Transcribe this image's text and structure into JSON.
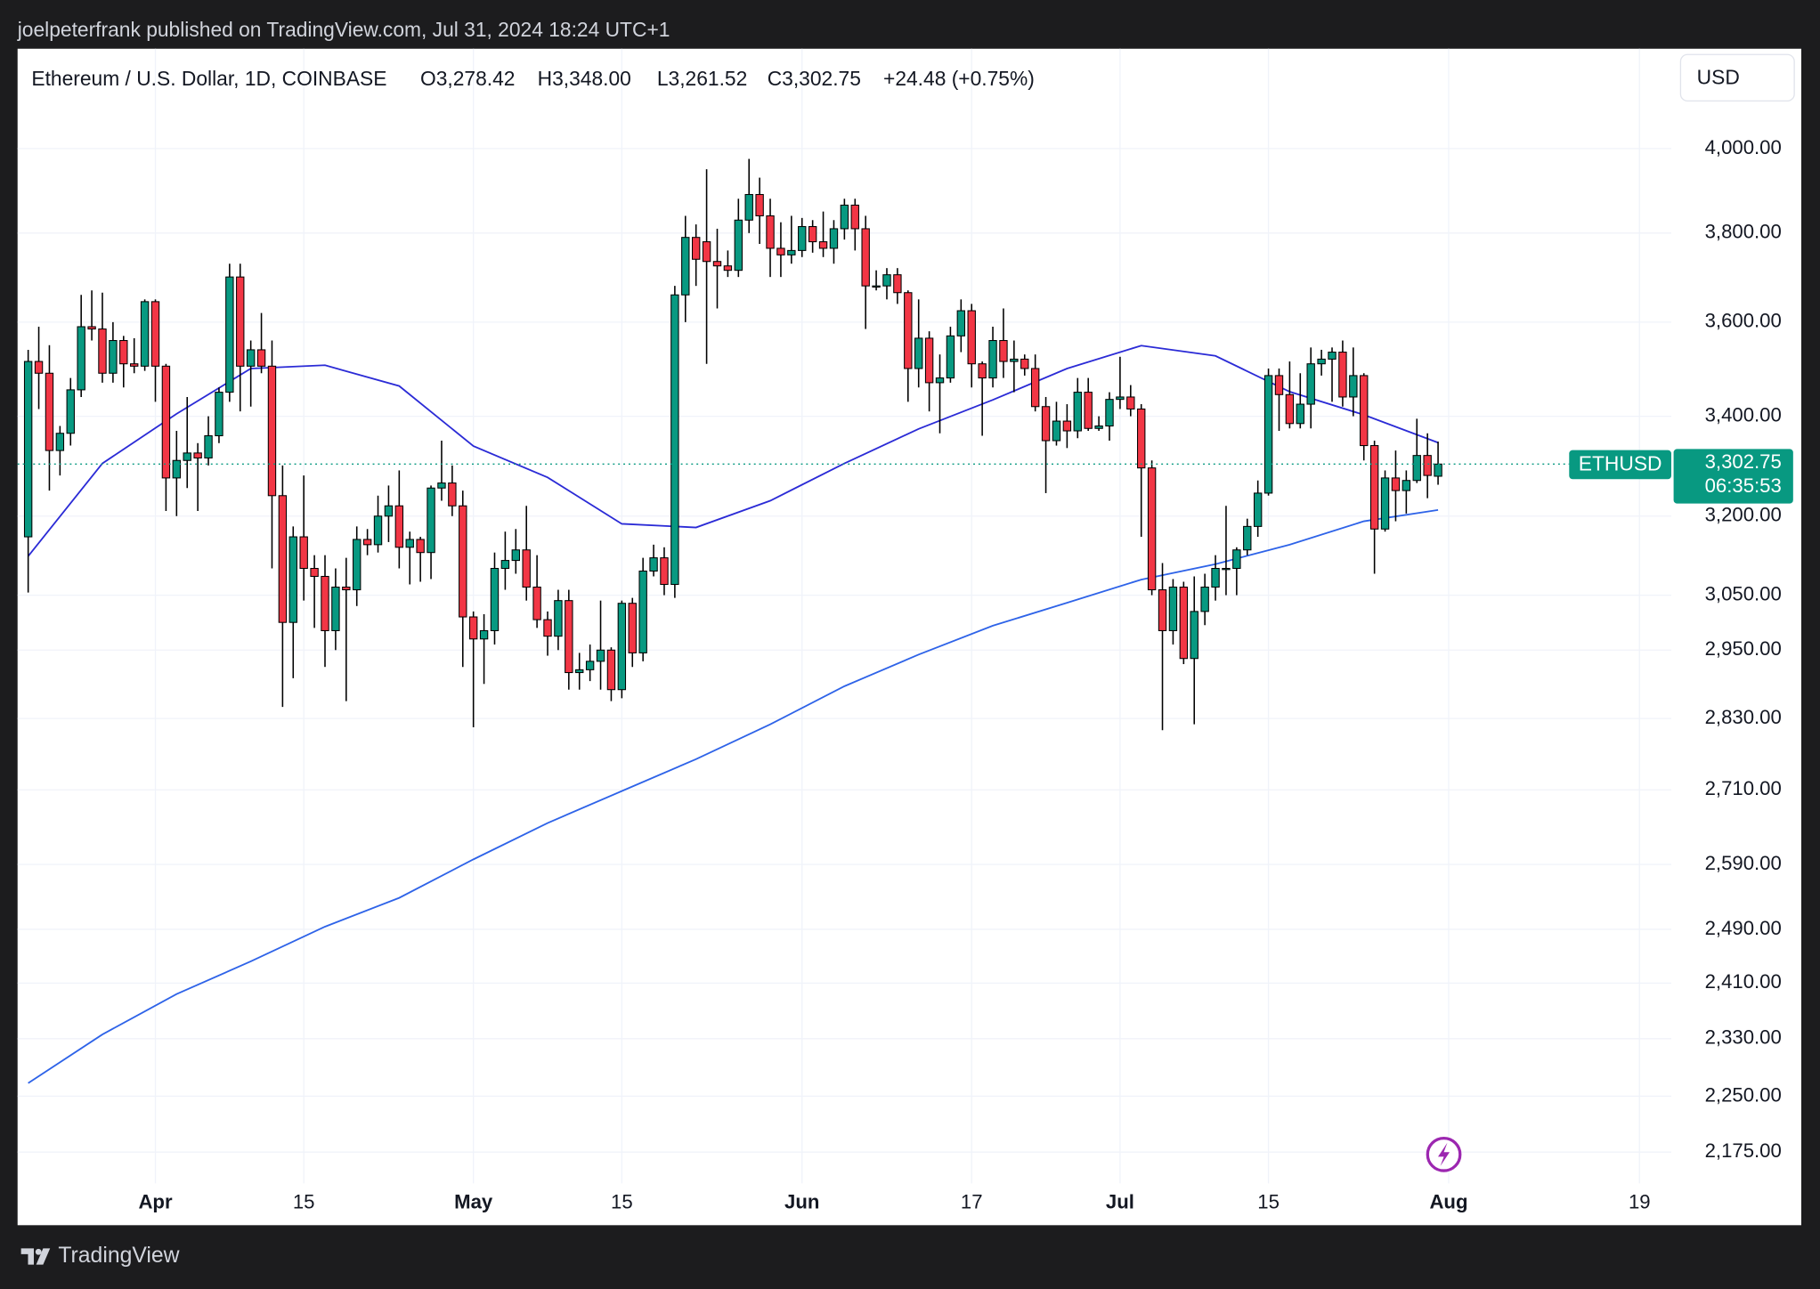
{
  "header": {
    "published": "joelpeterfrank published on TradingView.com, Jul 31, 2024 18:24 UTC+1",
    "footer": "TradingView"
  },
  "chart_data": {
    "type": "candlestick",
    "title": "Ethereum / U.S. Dollar, 1D, COINBASE",
    "ohlc_labels": [
      "O3,278.42",
      "H3,348.00",
      "L3,261.52",
      "C3,302.75"
    ],
    "change": "+24.48 (+0.75%)",
    "currency": "USD",
    "symbol": "ETHUSD",
    "last_price_label": "3,302.75",
    "countdown": "06:35:53",
    "up_color": "#089981",
    "down_color": "#f23645",
    "wick_color": "#000000",
    "log_scale": true,
    "grid": true,
    "x": [
      "2024-03-20",
      "2024-03-21",
      "2024-03-22",
      "2024-03-23",
      "2024-03-24",
      "2024-03-25",
      "2024-03-26",
      "2024-03-27",
      "2024-03-28",
      "2024-03-29",
      "2024-03-30",
      "2024-03-31",
      "2024-04-01",
      "2024-04-02",
      "2024-04-03",
      "2024-04-04",
      "2024-04-05",
      "2024-04-06",
      "2024-04-07",
      "2024-04-08",
      "2024-04-09",
      "2024-04-10",
      "2024-04-11",
      "2024-04-12",
      "2024-04-13",
      "2024-04-14",
      "2024-04-15",
      "2024-04-16",
      "2024-04-17",
      "2024-04-18",
      "2024-04-19",
      "2024-04-20",
      "2024-04-21",
      "2024-04-22",
      "2024-04-23",
      "2024-04-24",
      "2024-04-25",
      "2024-04-26",
      "2024-04-27",
      "2024-04-28",
      "2024-04-29",
      "2024-04-30",
      "2024-05-01",
      "2024-05-02",
      "2024-05-03",
      "2024-05-04",
      "2024-05-05",
      "2024-05-06",
      "2024-05-07",
      "2024-05-08",
      "2024-05-09",
      "2024-05-10",
      "2024-05-11",
      "2024-05-12",
      "2024-05-13",
      "2024-05-14",
      "2024-05-15",
      "2024-05-16",
      "2024-05-17",
      "2024-05-18",
      "2024-05-19",
      "2024-05-20",
      "2024-05-21",
      "2024-05-22",
      "2024-05-23",
      "2024-05-24",
      "2024-05-25",
      "2024-05-26",
      "2024-05-27",
      "2024-05-28",
      "2024-05-29",
      "2024-05-30",
      "2024-05-31",
      "2024-06-01",
      "2024-06-02",
      "2024-06-03",
      "2024-06-04",
      "2024-06-05",
      "2024-06-06",
      "2024-06-07",
      "2024-06-08",
      "2024-06-09",
      "2024-06-10",
      "2024-06-11",
      "2024-06-12",
      "2024-06-13",
      "2024-06-14",
      "2024-06-15",
      "2024-06-16",
      "2024-06-17",
      "2024-06-18",
      "2024-06-19",
      "2024-06-20",
      "2024-06-21",
      "2024-06-22",
      "2024-06-23",
      "2024-06-24",
      "2024-06-25",
      "2024-06-26",
      "2024-06-27",
      "2024-06-28",
      "2024-06-29",
      "2024-06-30",
      "2024-07-01",
      "2024-07-02",
      "2024-07-03",
      "2024-07-04",
      "2024-07-05",
      "2024-07-06",
      "2024-07-07",
      "2024-07-08",
      "2024-07-09",
      "2024-07-10",
      "2024-07-11",
      "2024-07-12",
      "2024-07-13",
      "2024-07-14",
      "2024-07-15",
      "2024-07-16",
      "2024-07-17",
      "2024-07-18",
      "2024-07-19",
      "2024-07-20",
      "2024-07-21",
      "2024-07-22",
      "2024-07-23",
      "2024-07-24",
      "2024-07-25",
      "2024-07-26",
      "2024-07-27",
      "2024-07-28",
      "2024-07-29",
      "2024-07-30",
      "2024-07-31"
    ],
    "open": [
      3160,
      3515,
      3490,
      3330,
      3365,
      3455,
      3590,
      3585,
      3490,
      3560,
      3510,
      3505,
      3645,
      3505,
      3275,
      3310,
      3325,
      3315,
      3360,
      3450,
      3700,
      3505,
      3540,
      3505,
      3240,
      3000,
      3160,
      3100,
      3085,
      2985,
      3065,
      3060,
      3155,
      3145,
      3200,
      3220,
      3140,
      3155,
      3130,
      3255,
      3265,
      3220,
      3010,
      2970,
      2985,
      3100,
      3115,
      3135,
      3065,
      3005,
      2975,
      3040,
      2910,
      2915,
      2930,
      2950,
      2880,
      3035,
      2945,
      3095,
      3120,
      3070,
      3660,
      3790,
      3780,
      3735,
      3725,
      3715,
      3830,
      3890,
      3840,
      3765,
      3750,
      3760,
      3815,
      3780,
      3765,
      3810,
      3865,
      3810,
      3680,
      3680,
      3705,
      3665,
      3500,
      3565,
      3470,
      3480,
      3570,
      3625,
      3510,
      3480,
      3560,
      3515,
      3520,
      3500,
      3420,
      3350,
      3390,
      3370,
      3450,
      3375,
      3380,
      3435,
      3440,
      3415,
      3295,
      3060,
      2985,
      3065,
      2935,
      3020,
      3065,
      3100,
      3100,
      3135,
      3180,
      3245,
      3485,
      3445,
      3385,
      3425,
      3510,
      3520,
      3535,
      3440,
      3485,
      3340,
      3175,
      3275,
      3250,
      3270,
      3320,
      3278.42
    ],
    "high": [
      3540,
      3590,
      3550,
      3380,
      3480,
      3660,
      3670,
      3665,
      3600,
      3570,
      3565,
      3650,
      3650,
      3510,
      3370,
      3440,
      3345,
      3400,
      3460,
      3730,
      3730,
      3560,
      3620,
      3560,
      3300,
      3180,
      3280,
      3125,
      3125,
      3100,
      3120,
      3180,
      3175,
      3240,
      3260,
      3290,
      3170,
      3160,
      3260,
      3350,
      3300,
      3250,
      3020,
      3015,
      3130,
      3170,
      3175,
      3220,
      3125,
      3020,
      3060,
      3060,
      2945,
      2960,
      3040,
      2955,
      3040,
      3045,
      3120,
      3145,
      3140,
      3680,
      3840,
      3820,
      3950,
      3810,
      3760,
      3880,
      3975,
      3930,
      3880,
      3825,
      3840,
      3835,
      3830,
      3850,
      3830,
      3880,
      3880,
      3840,
      3715,
      3720,
      3720,
      3670,
      3650,
      3580,
      3530,
      3590,
      3650,
      3640,
      3515,
      3590,
      3630,
      3560,
      3530,
      3530,
      3440,
      3430,
      3425,
      3480,
      3480,
      3400,
      3450,
      3525,
      3465,
      3425,
      3310,
      3110,
      3080,
      3075,
      3085,
      3090,
      3125,
      3220,
      3140,
      3195,
      3270,
      3500,
      3500,
      3515,
      3490,
      3545,
      3540,
      3545,
      3560,
      3545,
      3490,
      3350,
      3290,
      3330,
      3290,
      3395,
      3365,
      3348
    ],
    "low": [
      3055,
      3415,
      3250,
      3280,
      3340,
      3440,
      3560,
      3470,
      3470,
      3460,
      3490,
      3495,
      3430,
      3210,
      3200,
      3255,
      3210,
      3300,
      3345,
      3430,
      3410,
      3420,
      3490,
      3100,
      2850,
      2900,
      3040,
      2990,
      2920,
      2950,
      2860,
      3030,
      3125,
      3130,
      3150,
      3100,
      3070,
      3075,
      3080,
      3230,
      3200,
      2920,
      2815,
      2890,
      2960,
      3060,
      3090,
      3040,
      2990,
      2940,
      2950,
      2880,
      2880,
      2895,
      2880,
      2860,
      2865,
      2920,
      2930,
      3085,
      3050,
      3045,
      3600,
      3680,
      3510,
      3630,
      3700,
      3700,
      3800,
      3775,
      3700,
      3700,
      3730,
      3745,
      3755,
      3745,
      3730,
      3785,
      3760,
      3585,
      3670,
      3650,
      3640,
      3430,
      3460,
      3410,
      3365,
      3470,
      3535,
      3460,
      3360,
      3460,
      3480,
      3450,
      3485,
      3410,
      3245,
      3340,
      3335,
      3355,
      3370,
      3370,
      3350,
      3415,
      3400,
      3160,
      3050,
      2810,
      2960,
      2925,
      2820,
      2995,
      3040,
      3050,
      3050,
      3125,
      3160,
      3240,
      3370,
      3375,
      3375,
      3375,
      3485,
      3430,
      3420,
      3400,
      3310,
      3090,
      3170,
      3190,
      3205,
      3265,
      3235,
      3261.52
    ],
    "close": [
      3515,
      3490,
      3330,
      3365,
      3455,
      3590,
      3585,
      3490,
      3560,
      3510,
      3505,
      3645,
      3505,
      3275,
      3310,
      3325,
      3315,
      3360,
      3450,
      3700,
      3505,
      3540,
      3505,
      3240,
      3000,
      3160,
      3100,
      3085,
      2985,
      3065,
      3060,
      3155,
      3145,
      3200,
      3220,
      3140,
      3155,
      3130,
      3255,
      3265,
      3220,
      3010,
      2970,
      2985,
      3100,
      3115,
      3135,
      3065,
      3005,
      2975,
      3040,
      2910,
      2915,
      2930,
      2950,
      2880,
      3035,
      2945,
      3095,
      3120,
      3070,
      3660,
      3790,
      3740,
      3735,
      3725,
      3715,
      3830,
      3890,
      3840,
      3765,
      3750,
      3760,
      3815,
      3780,
      3765,
      3810,
      3865,
      3810,
      3680,
      3680,
      3705,
      3665,
      3500,
      3565,
      3470,
      3480,
      3570,
      3625,
      3510,
      3480,
      3560,
      3515,
      3520,
      3500,
      3420,
      3350,
      3390,
      3370,
      3450,
      3375,
      3380,
      3435,
      3440,
      3415,
      3295,
      3060,
      2985,
      3065,
      2935,
      3020,
      3065,
      3100,
      3100,
      3135,
      3180,
      3245,
      3485,
      3445,
      3385,
      3425,
      3510,
      3520,
      3535,
      3440,
      3485,
      3340,
      3175,
      3275,
      3250,
      3270,
      3320,
      3280,
      3302.75
    ],
    "lines": [
      {
        "color": "#2b2bd6",
        "x": [
          "2024-03-20",
          "2024-03-27",
          "2024-04-03",
          "2024-04-10",
          "2024-04-17",
          "2024-04-24",
          "2024-05-01",
          "2024-05-08",
          "2024-05-15",
          "2024-05-22",
          "2024-05-29",
          "2024-06-05",
          "2024-06-12",
          "2024-06-19",
          "2024-06-26",
          "2024-07-03",
          "2024-07-10",
          "2024-07-17",
          "2024-07-24",
          "2024-07-31"
        ],
        "values": [
          3123,
          3304,
          3405,
          3500,
          3507,
          3463,
          3339,
          3276,
          3185,
          3178,
          3230,
          3304,
          3374,
          3434,
          3500,
          3549,
          3527,
          3451,
          3403,
          3346
        ]
      },
      {
        "color": "#2e63e8",
        "x": [
          "2024-03-20",
          "2024-03-27",
          "2024-04-03",
          "2024-04-10",
          "2024-04-17",
          "2024-04-24",
          "2024-05-01",
          "2024-05-08",
          "2024-05-15",
          "2024-05-22",
          "2024-05-29",
          "2024-06-05",
          "2024-06-12",
          "2024-06-19",
          "2024-06-26",
          "2024-07-03",
          "2024-07-10",
          "2024-07-17",
          "2024-07-24",
          "2024-07-31"
        ],
        "values": [
          2268,
          2336,
          2394,
          2442,
          2494,
          2538,
          2598,
          2656,
          2708,
          2761,
          2820,
          2886,
          2942,
          2994,
          3036,
          3079,
          3108,
          3145,
          3190,
          3212
        ]
      }
    ],
    "xlim": [
      "2024-03-19",
      "2024-08-22"
    ],
    "xticks": [
      {
        "value": "2024-04-01",
        "label": "Apr"
      },
      {
        "value": "2024-04-15",
        "label": "15"
      },
      {
        "value": "2024-05-01",
        "label": "May"
      },
      {
        "value": "2024-05-15",
        "label": "15"
      },
      {
        "value": "2024-06-01",
        "label": "Jun"
      },
      {
        "value": "2024-06-17",
        "label": "17"
      },
      {
        "value": "2024-07-01",
        "label": "Jul"
      },
      {
        "value": "2024-07-15",
        "label": "15"
      },
      {
        "value": "2024-08-01",
        "label": "Aug"
      },
      {
        "value": "2024-08-19",
        "label": "19"
      }
    ],
    "ylim": [
      2134,
      4250
    ],
    "yticks": [
      {
        "value": 4000,
        "label": "4,000.00"
      },
      {
        "value": 3800,
        "label": "3,800.00"
      },
      {
        "value": 3600,
        "label": "3,600.00"
      },
      {
        "value": 3400,
        "label": "3,400.00"
      },
      {
        "value": 3200,
        "label": "3,200.00"
      },
      {
        "value": 3050,
        "label": "3,050.00"
      },
      {
        "value": 2950,
        "label": "2,950.00"
      },
      {
        "value": 2830,
        "label": "2,830.00"
      },
      {
        "value": 2710,
        "label": "2,710.00"
      },
      {
        "value": 2590,
        "label": "2,590.00"
      },
      {
        "value": 2490,
        "label": "2,490.00"
      },
      {
        "value": 2410,
        "label": "2,410.00"
      },
      {
        "value": 2330,
        "label": "2,330.00"
      },
      {
        "value": 2250,
        "label": "2,250.00"
      },
      {
        "value": 2175,
        "label": "2,175.00"
      }
    ]
  }
}
